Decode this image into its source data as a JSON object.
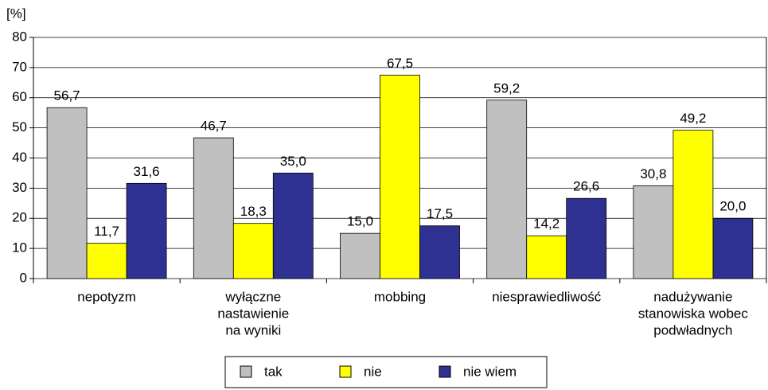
{
  "chart_data": {
    "type": "bar",
    "y_label": "[%]",
    "categories": [
      [
        "nepotyzm"
      ],
      [
        "wyłączne",
        "nastawienie",
        "na wyniki"
      ],
      [
        "mobbing"
      ],
      [
        "niesprawiedliwość"
      ],
      [
        "nadużywanie",
        "stanowiska wobec",
        "podwładnych"
      ]
    ],
    "series": [
      {
        "name": "tak",
        "color": "#c0c0c0",
        "values": [
          56.7,
          46.7,
          15.0,
          59.2,
          30.8
        ],
        "value_labels": [
          "56,7",
          "46,7",
          "15,0",
          "59,2",
          "30,8"
        ]
      },
      {
        "name": "nie",
        "color": "#ffff00",
        "values": [
          11.7,
          18.3,
          67.5,
          14.2,
          49.2
        ],
        "value_labels": [
          "11,7",
          "18,3",
          "67,5",
          "14,2",
          "49,2"
        ]
      },
      {
        "name": "nie wiem",
        "color": "#2e3192",
        "values": [
          31.6,
          35.0,
          17.5,
          26.6,
          20.0
        ],
        "value_labels": [
          "31,6",
          "35,0",
          "17,5",
          "26,6",
          "20,0"
        ]
      }
    ],
    "ylim": [
      0,
      80
    ],
    "yticks": [
      0,
      10,
      20,
      30,
      40,
      50,
      60,
      70,
      80
    ],
    "grid": true,
    "legend": "bottom"
  }
}
